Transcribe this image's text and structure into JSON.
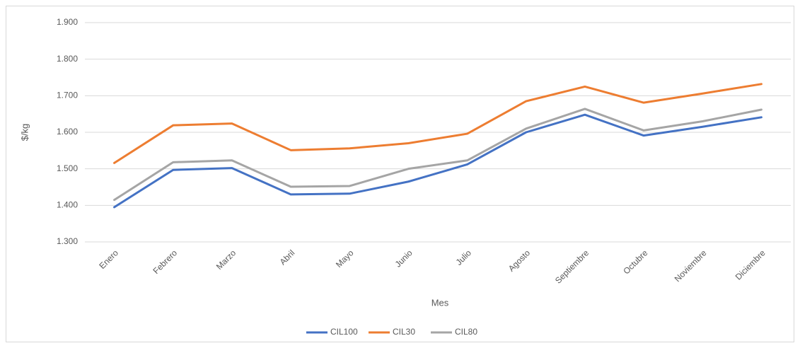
{
  "chart_data": {
    "type": "line",
    "x_label": "Mes",
    "y_label": "$/kg",
    "categories": [
      "Enero",
      "Febrero",
      "Marzo",
      "Abril",
      "Mayo",
      "Junio",
      "Julio",
      "Agosto",
      "Septiembre",
      "Octubre",
      "Noviembre",
      "Diciembre"
    ],
    "series": [
      {
        "name": "CIL100",
        "color": "#4472c4",
        "values": [
          1395,
          1497,
          1502,
          1430,
          1432,
          1465,
          1512,
          1600,
          1648,
          1591,
          1615,
          1641
        ]
      },
      {
        "name": "CIL30",
        "color": "#ed7d31",
        "values": [
          1516,
          1619,
          1624,
          1551,
          1556,
          1570,
          1596,
          1685,
          1725,
          1681,
          1706,
          1732
        ]
      },
      {
        "name": "CIL80",
        "color": "#a5a5a5",
        "values": [
          1415,
          1518,
          1523,
          1451,
          1453,
          1500,
          1523,
          1610,
          1664,
          1605,
          1630,
          1662
        ]
      }
    ],
    "ylim": [
      1300,
      1900
    ],
    "yticks": [
      {
        "value": 1300,
        "label": "1.300"
      },
      {
        "value": 1400,
        "label": "1.400"
      },
      {
        "value": 1500,
        "label": "1.500"
      },
      {
        "value": 1600,
        "label": "1.600"
      },
      {
        "value": 1700,
        "label": "1.700"
      },
      {
        "value": 1800,
        "label": "1.800"
      },
      {
        "value": 1900,
        "label": "1.900"
      }
    ],
    "grid": true,
    "legend": "bottom"
  }
}
